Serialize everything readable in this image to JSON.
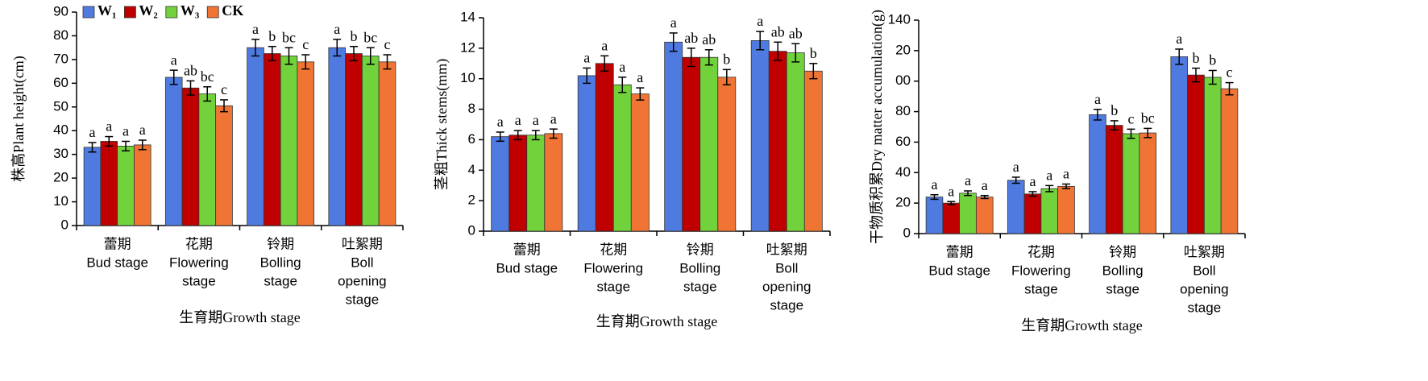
{
  "chart_data": [
    {
      "type": "bar",
      "ylabel": "株高Plant height(cm)",
      "xlabel": "生育期Growth stage",
      "categories": [
        [
          "蕾期",
          "Bud stage"
        ],
        [
          "花期",
          "Flowering",
          "stage"
        ],
        [
          "铃期",
          "Bolling",
          "stage"
        ],
        [
          "吐絮期",
          "Boll",
          "opening",
          "stage"
        ]
      ],
      "ylim": [
        0,
        90
      ],
      "yticks": [
        0,
        10,
        20,
        30,
        40,
        50,
        60,
        70,
        80,
        90
      ],
      "legend": "top-left",
      "series": [
        {
          "name": "W₁",
          "color": "#4f7be0",
          "values": [
            33,
            62.5,
            75,
            75
          ],
          "errors": [
            2,
            3,
            3.5,
            3.5
          ],
          "letters": [
            "a",
            "a",
            "a",
            "a"
          ]
        },
        {
          "name": "W₂",
          "color": "#c00000",
          "values": [
            35.5,
            58,
            72.5,
            72.5
          ],
          "errors": [
            2,
            3,
            3,
            3
          ],
          "letters": [
            "a",
            "ab",
            "b",
            "b"
          ]
        },
        {
          "name": "W₃",
          "color": "#72d23c",
          "values": [
            33.5,
            55.5,
            71.5,
            71.5
          ],
          "errors": [
            2,
            3,
            3.5,
            3.5
          ],
          "letters": [
            "a",
            "bc",
            "bc",
            "bc"
          ]
        },
        {
          "name": "CK",
          "color": "#f07535",
          "values": [
            34,
            50.5,
            69,
            69
          ],
          "errors": [
            2,
            2.5,
            3,
            3
          ],
          "letters": [
            "a",
            "c",
            "c",
            "c"
          ]
        }
      ]
    },
    {
      "type": "bar",
      "ylabel": "茎粗Thick stems(mm)",
      "xlabel": "生育期Growth stage",
      "categories": [
        [
          "蕾期",
          "Bud stage"
        ],
        [
          "花期",
          "Flowering",
          "stage"
        ],
        [
          "铃期",
          "Bolling",
          "stage"
        ],
        [
          "吐絮期",
          "Boll",
          "opening",
          "stage"
        ]
      ],
      "ylim": [
        0,
        14
      ],
      "yticks": [
        0,
        2,
        4,
        6,
        8,
        10,
        12,
        14
      ],
      "series": [
        {
          "color": "#4f7be0",
          "values": [
            6.2,
            10.2,
            12.4,
            12.5
          ],
          "errors": [
            0.3,
            0.5,
            0.6,
            0.6
          ],
          "letters": [
            "a",
            "a",
            "a",
            "a"
          ]
        },
        {
          "color": "#c00000",
          "values": [
            6.3,
            11,
            11.4,
            11.8
          ],
          "errors": [
            0.3,
            0.5,
            0.6,
            0.6
          ],
          "letters": [
            "a",
            "a",
            "ab",
            "ab"
          ]
        },
        {
          "color": "#72d23c",
          "values": [
            6.3,
            9.6,
            11.4,
            11.7
          ],
          "errors": [
            0.3,
            0.5,
            0.5,
            0.6
          ],
          "letters": [
            "a",
            "a",
            "ab",
            "ab"
          ]
        },
        {
          "color": "#f07535",
          "values": [
            6.4,
            9,
            10.1,
            10.5
          ],
          "errors": [
            0.3,
            0.4,
            0.5,
            0.5
          ],
          "letters": [
            "a",
            "a",
            "b",
            "b"
          ]
        }
      ]
    },
    {
      "type": "bar",
      "ylabel": "干物质积累Dry matter accumulation(g)",
      "xlabel": "生育期Growth stage",
      "categories": [
        [
          "蕾期",
          "Bud stage"
        ],
        [
          "花期",
          "Flowering",
          "stage"
        ],
        [
          "铃期",
          "Bolling",
          "stage"
        ],
        [
          "吐絮期",
          "Boll",
          "opening",
          "stage"
        ]
      ],
      "ylim": [
        0,
        140
      ],
      "yticks": [
        0,
        20,
        40,
        60,
        80,
        {
          "value": 100,
          "label": "00"
        },
        {
          "value": 120,
          "label": "20"
        },
        140
      ],
      "series": [
        {
          "color": "#4f7be0",
          "values": [
            24,
            35,
            78,
            116
          ],
          "errors": [
            1.5,
            2,
            3.5,
            5
          ],
          "letters": [
            "a",
            "a",
            "a",
            "a"
          ]
        },
        {
          "color": "#c00000",
          "values": [
            20,
            26,
            71,
            104
          ],
          "errors": [
            1,
            1.5,
            3,
            4.5
          ],
          "letters": [
            "a",
            "a",
            "b",
            "b"
          ]
        },
        {
          "color": "#72d23c",
          "values": [
            26.5,
            29.5,
            65.5,
            102.5
          ],
          "errors": [
            1.5,
            2,
            3,
            4.5
          ],
          "letters": [
            "a",
            "a",
            "c",
            "b"
          ]
        },
        {
          "color": "#f07535",
          "values": [
            24,
            31,
            66,
            95
          ],
          "errors": [
            1,
            1.5,
            3,
            4
          ],
          "letters": [
            "a",
            "a",
            "bc",
            "c"
          ]
        }
      ]
    }
  ]
}
